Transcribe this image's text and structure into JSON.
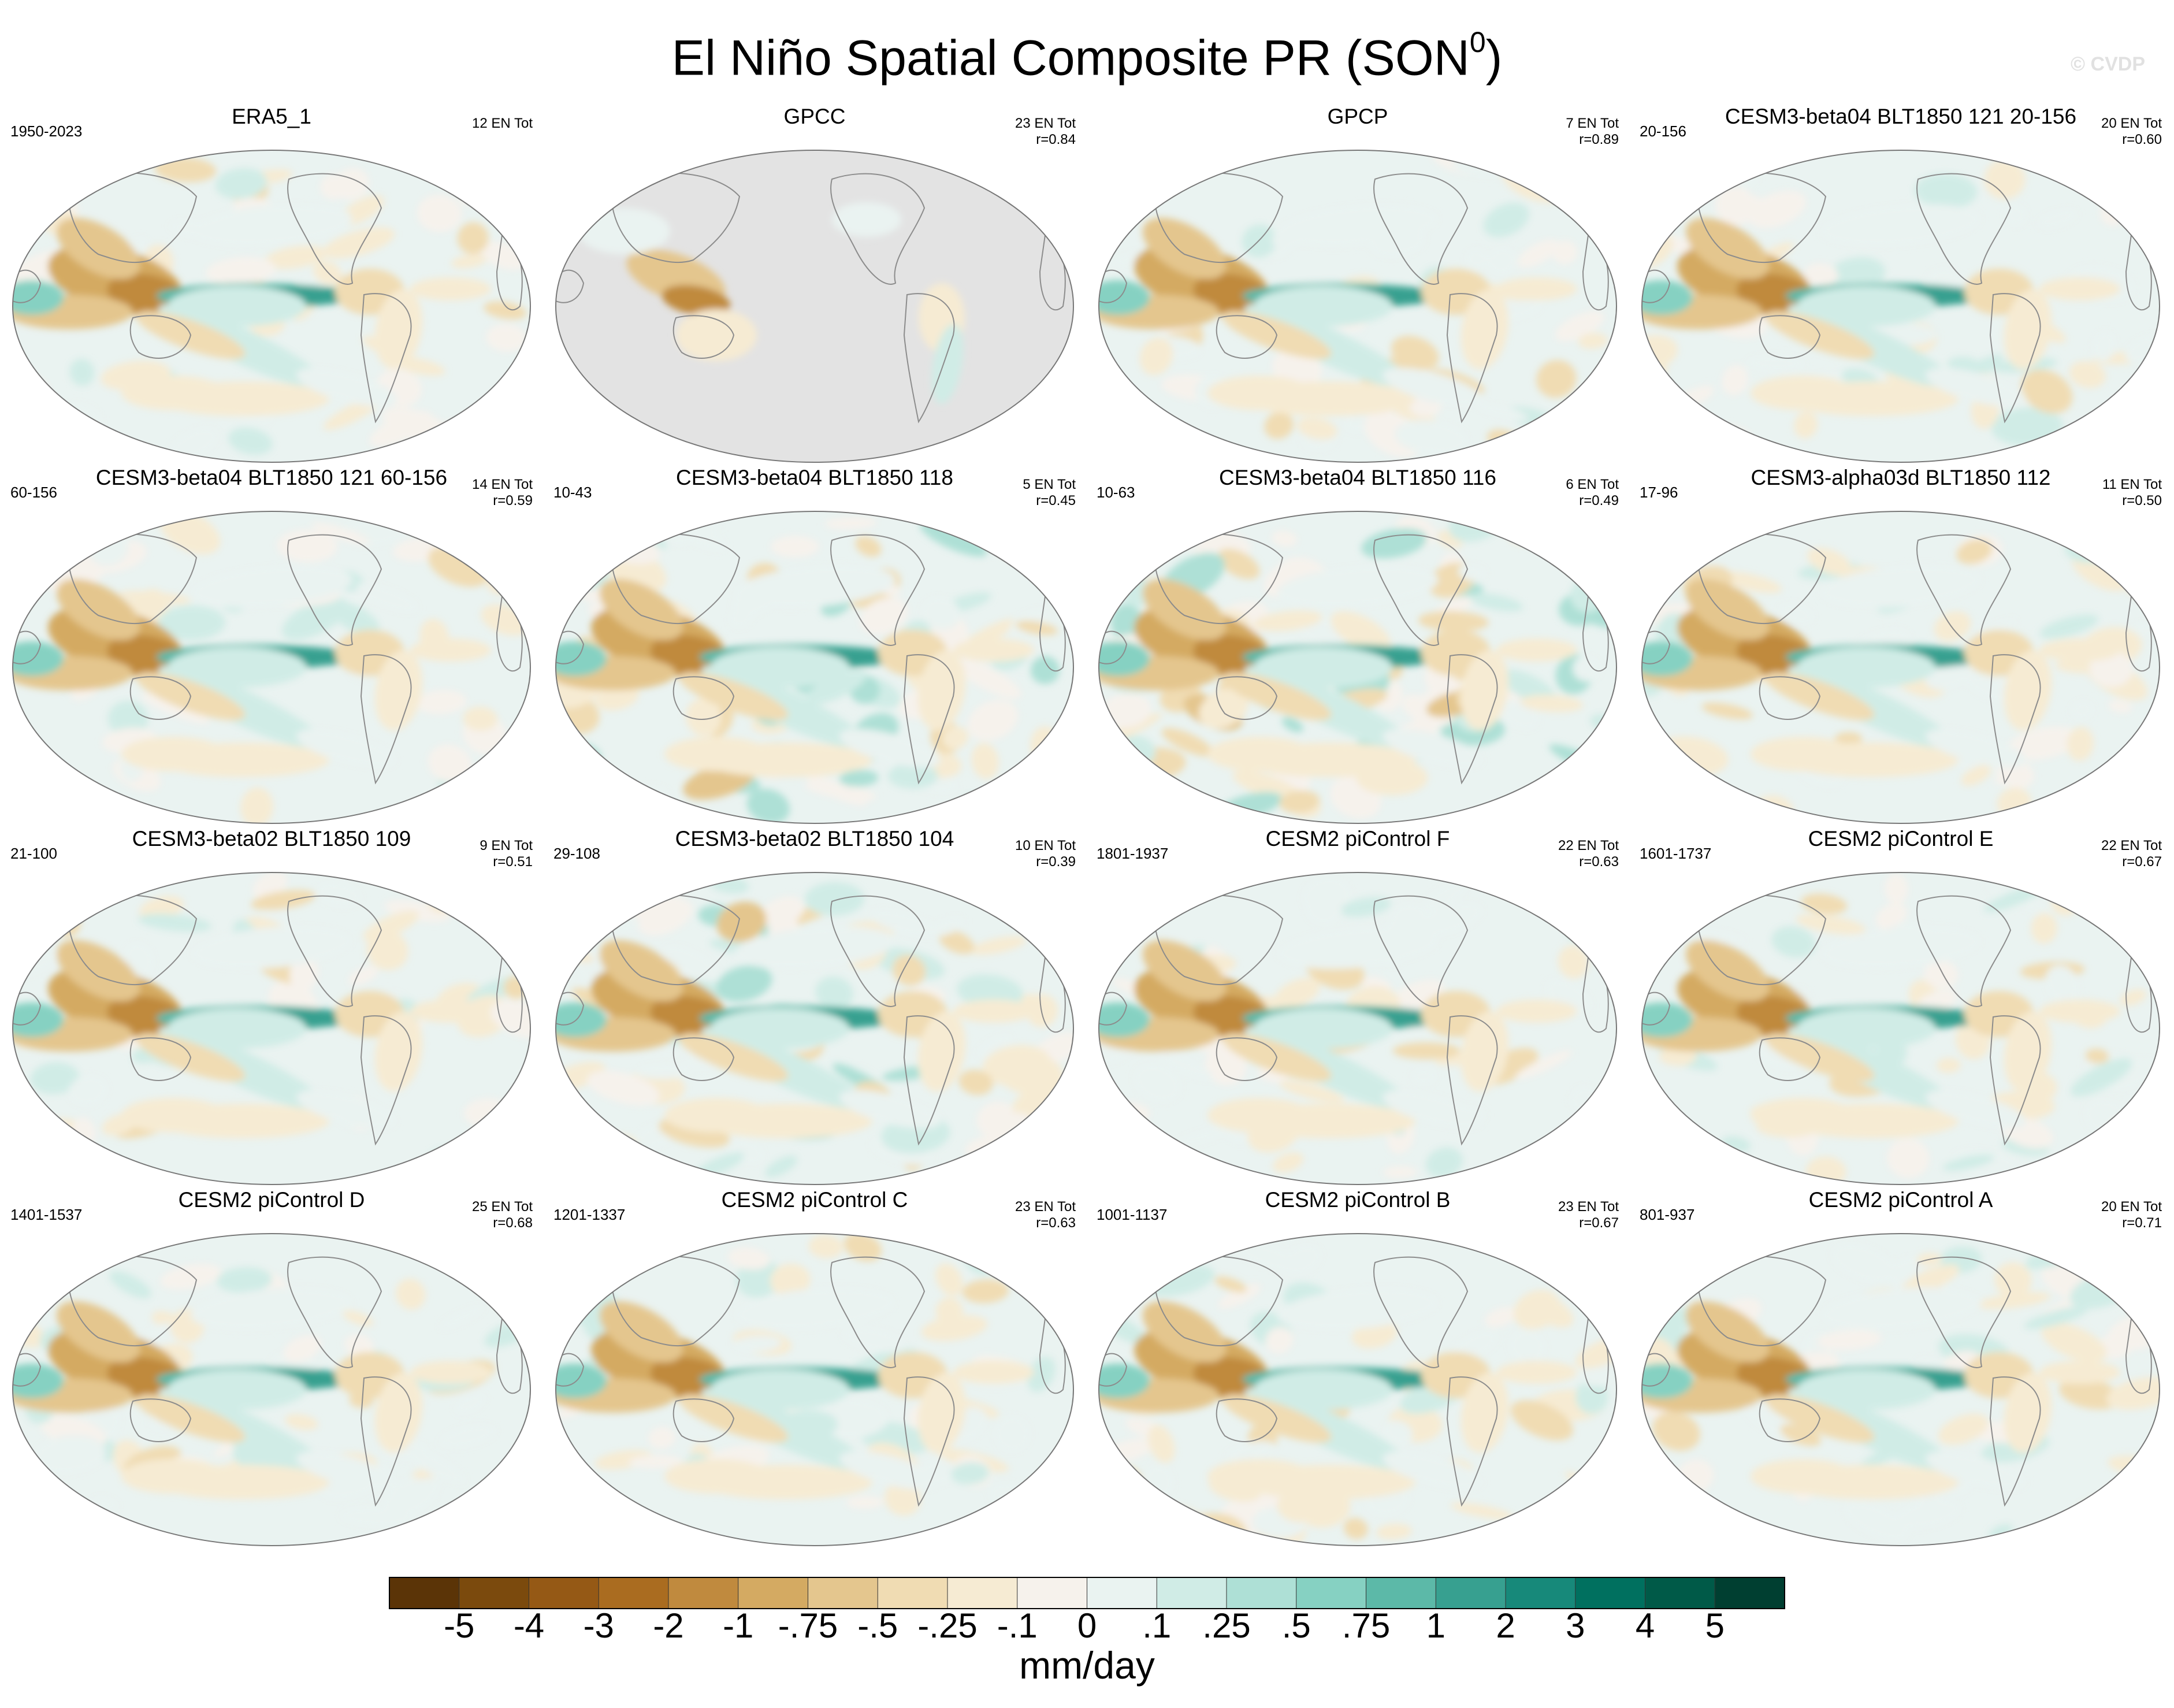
{
  "title": "El Niño Spatial Composite PR (SON",
  "title_superscript": "0",
  "title_suffix": ")",
  "watermark": "© CVDP",
  "chart_data": {
    "type": "heatmap",
    "variable": "PR",
    "season": "SON",
    "units": "mm/day",
    "colorbar": {
      "labels": [
        "-5",
        "-4",
        "-3",
        "-2",
        "-1",
        "-.75",
        "-.5",
        "-.25",
        "-.1",
        "0",
        ".1",
        ".25",
        ".5",
        ".75",
        "1",
        "2",
        "3",
        "4",
        "5"
      ],
      "colors": [
        "#5b3407",
        "#7b4a0d",
        "#955915",
        "#aa6c20",
        "#c08a3e",
        "#d4aa62",
        "#e4c68e",
        "#f0dcb3",
        "#f6ebd3",
        "#f6f2ec",
        "#eaf3f1",
        "#d0ece6",
        "#aee0d6",
        "#86d1c2",
        "#5cb9a8",
        "#37a090",
        "#17897a",
        "#00705f",
        "#005a48",
        "#003f31"
      ]
    },
    "panels": [
      {
        "name": "ERA5_1",
        "period": "1950-2023",
        "count": "12 EN Tot",
        "r": "",
        "pattern": "obs"
      },
      {
        "name": "GPCC",
        "period": "",
        "count": "23 EN Tot",
        "r": "r=0.84",
        "pattern": "land"
      },
      {
        "name": "GPCP",
        "period": "",
        "count": "7 EN Tot",
        "r": "r=0.89",
        "pattern": "obs"
      },
      {
        "name": "CESM3-beta04 BLT1850 121 20-156",
        "period": "20-156",
        "count": "20 EN Tot",
        "r": "r=0.60",
        "pattern": "model"
      },
      {
        "name": "CESM3-beta04 BLT1850 121 60-156",
        "period": "60-156",
        "count": "14 EN Tot",
        "r": "r=0.59",
        "pattern": "model"
      },
      {
        "name": "CESM3-beta04 BLT1850 118",
        "period": "10-43",
        "count": "5 EN Tot",
        "r": "r=0.45",
        "pattern": "noisy"
      },
      {
        "name": "CESM3-beta04 BLT1850 116",
        "period": "10-63",
        "count": "6 EN Tot",
        "r": "r=0.49",
        "pattern": "noisy"
      },
      {
        "name": "CESM3-alpha03d BLT1850 112",
        "period": "17-96",
        "count": "11 EN Tot",
        "r": "r=0.50",
        "pattern": "model"
      },
      {
        "name": "CESM3-beta02 BLT1850 109",
        "period": "21-100",
        "count": "9 EN Tot",
        "r": "r=0.51",
        "pattern": "model"
      },
      {
        "name": "CESM3-beta02 BLT1850 104",
        "period": "29-108",
        "count": "10 EN Tot",
        "r": "r=0.39",
        "pattern": "noisy"
      },
      {
        "name": "CESM2 piControl F",
        "period": "1801-1937",
        "count": "22 EN Tot",
        "r": "r=0.63",
        "pattern": "model"
      },
      {
        "name": "CESM2 piControl E",
        "period": "1601-1737",
        "count": "22 EN Tot",
        "r": "r=0.67",
        "pattern": "model"
      },
      {
        "name": "CESM2 piControl D",
        "period": "1401-1537",
        "count": "25 EN Tot",
        "r": "r=0.68",
        "pattern": "model"
      },
      {
        "name": "CESM2 piControl C",
        "period": "1201-1337",
        "count": "23 EN Tot",
        "r": "r=0.63",
        "pattern": "model"
      },
      {
        "name": "CESM2 piControl B",
        "period": "1001-1137",
        "count": "23 EN Tot",
        "r": "r=0.67",
        "pattern": "model"
      },
      {
        "name": "CESM2 piControl A",
        "period": "801-937",
        "count": "20 EN Tot",
        "r": "r=0.71",
        "pattern": "model"
      }
    ]
  }
}
